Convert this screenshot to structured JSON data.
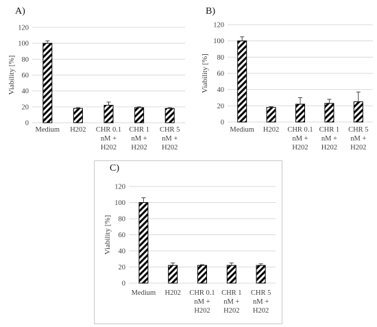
{
  "chart_data": [
    {
      "type": "bar",
      "panel_label": "A)",
      "ylabel": "Viability  [%]",
      "ylim": [
        0,
        120
      ],
      "yticks": [
        0,
        20,
        40,
        60,
        80,
        100,
        120
      ],
      "grid": true,
      "categories": [
        [
          "Medium"
        ],
        [
          "H202"
        ],
        [
          "CHR 0.1",
          "nM +",
          "H202"
        ],
        [
          "CHR 1",
          "nM +",
          "H202"
        ],
        [
          "CHR 5",
          "nM +",
          "H202"
        ]
      ],
      "values": [
        100,
        18,
        22,
        19,
        18
      ],
      "errors": [
        3,
        1,
        4,
        1,
        1
      ]
    },
    {
      "type": "bar",
      "panel_label": "B)",
      "ylabel": "Viability  [%]",
      "ylim": [
        0,
        120
      ],
      "yticks": [
        0,
        20,
        40,
        60,
        80,
        100,
        120
      ],
      "grid": true,
      "categories": [
        [
          "Medium"
        ],
        [
          "H202"
        ],
        [
          "CHR 0.1",
          "nM +",
          "H202"
        ],
        [
          "CHR 1",
          "nM +",
          "H202"
        ],
        [
          "CHR 5",
          "nM +",
          "H202"
        ]
      ],
      "values": [
        100,
        18,
        22,
        23,
        25
      ],
      "errors": [
        5,
        1,
        8,
        5,
        12
      ]
    },
    {
      "type": "bar",
      "panel_label": "C)",
      "ylabel": "Viability  [%]",
      "ylim": [
        0,
        120
      ],
      "yticks": [
        0,
        20,
        40,
        60,
        80,
        100,
        120
      ],
      "grid": true,
      "categories": [
        [
          "Medium"
        ],
        [
          "H202"
        ],
        [
          "CHR 0.1",
          "nM +",
          "H202"
        ],
        [
          "CHR 1",
          "nM +",
          "H202"
        ],
        [
          "CHR 5",
          "nM +",
          "H202"
        ]
      ],
      "values": [
        100,
        22,
        22,
        22,
        22
      ],
      "errors": [
        6,
        3,
        1,
        3,
        2
      ]
    }
  ]
}
